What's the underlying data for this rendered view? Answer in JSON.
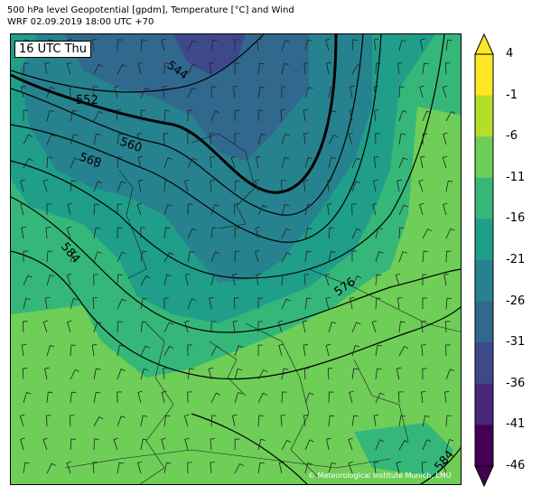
{
  "header": {
    "title_line1": "500 hPa level Geopotential [gpdm], Temperature [°C] and Wind",
    "title_line2": "WRF 02.09.2019 18:00 UTC +70"
  },
  "map": {
    "time_label": "16 UTC Thu",
    "credit": "© Meteorological Institute Munich, LMU",
    "contour_labels": [
      "544",
      "552",
      "560",
      "568",
      "584",
      "576",
      "584"
    ]
  },
  "colorbar": {
    "tick_labels": [
      "4",
      "-1",
      "-6",
      "-11",
      "-16",
      "-21",
      "-26",
      "-31",
      "-36",
      "-41",
      "-46"
    ],
    "colors": [
      "#fde725",
      "#b5de2b",
      "#6ece58",
      "#35b779",
      "#1f9e89",
      "#26828e",
      "#31688e",
      "#3e4989",
      "#482878",
      "#440154"
    ]
  }
}
